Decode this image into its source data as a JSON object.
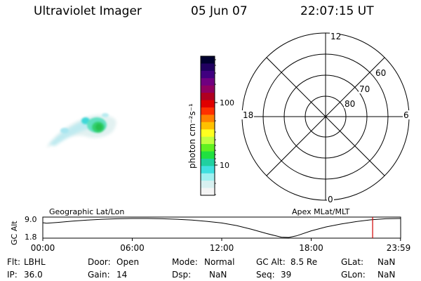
{
  "header": {
    "title": "Ultraviolet Imager",
    "date": "05 Jun 07",
    "time": "22:07:15 UT"
  },
  "colorbar": {
    "label": "photon cm⁻²s⁻¹",
    "ticks": [
      "100",
      "10"
    ],
    "colors": [
      "#000030",
      "#200060",
      "#400080",
      "#700080",
      "#900060",
      "#b00020",
      "#e00000",
      "#ff3000",
      "#ff8000",
      "#ffc000",
      "#ffff20",
      "#c0ff40",
      "#60f020",
      "#20e040",
      "#20d0a0",
      "#40e0e0",
      "#a0f0f0",
      "#d8f0f0",
      "#f4f4f4"
    ]
  },
  "polar": {
    "mlt_labels": {
      "top": "12",
      "left": "18",
      "right": "6",
      "bottom": "0"
    },
    "lat_labels": [
      "60",
      "70",
      "80"
    ]
  },
  "chart_data": {
    "type": "line",
    "title": "",
    "left_label": "Geographic Lat/Lon",
    "right_label": "Apex MLat/MLT",
    "ylabel": "GC Alt",
    "yticks": [
      "9.0",
      "1.8"
    ],
    "ylim": [
      1.8,
      9.0
    ],
    "x_ticks": [
      "00:00",
      "06:00",
      "12:00",
      "18:00",
      "23:59"
    ],
    "series": [
      {
        "x_hours": [
          0,
          0.25,
          1,
          2,
          3,
          4,
          5,
          6,
          7,
          8,
          9,
          10,
          11,
          12,
          13,
          14,
          15,
          16,
          16.5,
          17,
          18,
          19,
          20,
          21,
          22,
          23,
          23.99
        ],
        "values": [
          7.4,
          7.2,
          7.5,
          8.0,
          8.4,
          8.7,
          8.9,
          9.0,
          9.0,
          8.9,
          8.7,
          8.4,
          7.9,
          7.3,
          6.3,
          4.9,
          3.3,
          1.9,
          1.8,
          2.4,
          4.3,
          5.8,
          6.9,
          7.8,
          8.5,
          8.9,
          9.0
        ]
      }
    ],
    "current_time_hours": 22.12,
    "marker_color": "#d00000"
  },
  "footer": {
    "flt_label": "Flt:",
    "flt_value": "LBHL",
    "ip_label": "IP:",
    "ip_value": "36.0",
    "door_label": "Door:",
    "door_value": "Open",
    "gain_label": "Gain:",
    "gain_value": "14",
    "mode_label": "Mode:",
    "mode_value": "Normal",
    "dsp_label": "Dsp:",
    "dsp_value": "NaN",
    "gcalt_label": "GC Alt:",
    "gcalt_value": "8.5 Re",
    "seq_label": "Seq:",
    "seq_value": "39",
    "glat_label": "GLat:",
    "glat_value": "NaN",
    "glon_label": "GLon:",
    "glon_value": "NaN"
  }
}
